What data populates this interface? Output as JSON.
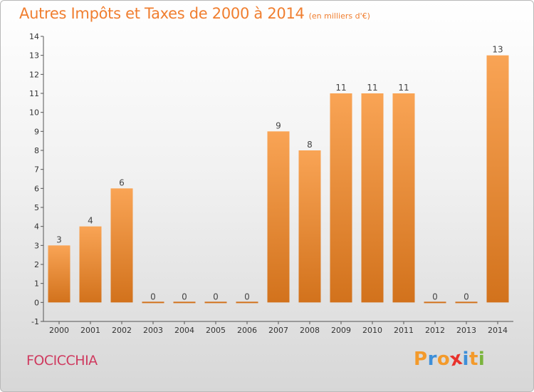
{
  "title": "Autres Impôts et Taxes de 2000 à 2014",
  "subtitle": "(en milliers d'€)",
  "commune": "FOCICCHIA",
  "brand": "Proxiti",
  "colors": {
    "bar_top": "#f9a455",
    "bar_bottom": "#d2721c",
    "title": "#f07e2f",
    "commune": "#cf3a5f",
    "brand": [
      "#f39a2b",
      "#3d8fd9",
      "#f39a2b",
      "#e8322c",
      "#3d8fd9",
      "#f39a2b",
      "#7ab43c"
    ]
  },
  "chart_data": {
    "type": "bar",
    "categories": [
      "2000",
      "2001",
      "2002",
      "2003",
      "2004",
      "2005",
      "2006",
      "2007",
      "2008",
      "2009",
      "2010",
      "2011",
      "2012",
      "2013",
      "2014"
    ],
    "values": [
      3,
      4,
      6,
      0,
      0,
      0,
      0,
      9,
      8,
      11,
      11,
      11,
      0,
      0,
      13
    ],
    "ylim": [
      -1,
      14
    ],
    "yticks": [
      -1,
      0,
      1,
      2,
      3,
      4,
      5,
      6,
      7,
      8,
      9,
      10,
      11,
      12,
      13,
      14
    ],
    "grid": false,
    "data_labels": true
  }
}
